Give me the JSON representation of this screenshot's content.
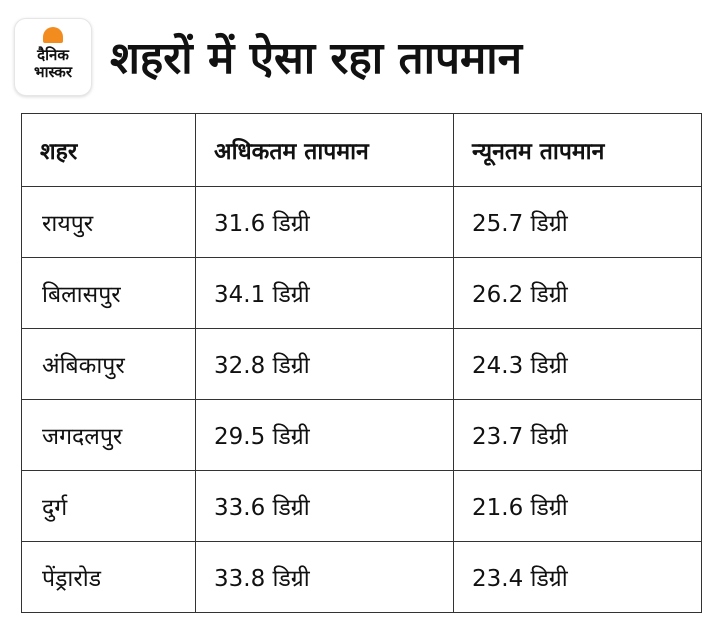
{
  "logo": {
    "line1": "दैनिक",
    "line2": "भास्कर"
  },
  "title": "शहरों में ऐसा रहा तापमान",
  "table": {
    "headers": [
      "शहर",
      "अधिकतम तापमान",
      "न्यूनतम तापमान"
    ],
    "rows": [
      [
        "रायपुर",
        "31.6 डिग्री",
        "25.7 डिग्री"
      ],
      [
        "बिलासपुर",
        "34.1 डिग्री",
        "26.2 डिग्री"
      ],
      [
        "अंबिकापुर",
        "32.8 डिग्री",
        "24.3 डिग्री"
      ],
      [
        "जगदलपुर",
        "29.5 डिग्री",
        "23.7 डिग्री"
      ],
      [
        "दुर्ग",
        "33.6 डिग्री",
        "21.6 डिग्री"
      ],
      [
        "पेंड्रारोड",
        "33.8 डिग्री",
        "23.4 डिग्री"
      ]
    ]
  },
  "colors": {
    "logo_accent": "#f28c1e",
    "border": "#333333",
    "text": "#111111"
  }
}
